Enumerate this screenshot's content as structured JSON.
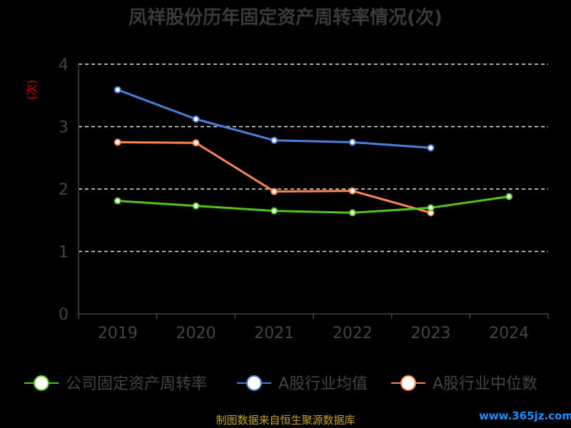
{
  "chart_data": {
    "type": "line",
    "title": "凤祥股份历年固定资产周转率情况(次)",
    "y_unit": "(次)",
    "categories": [
      "2019",
      "2020",
      "2021",
      "2022",
      "2023",
      "2024"
    ],
    "ylim": [
      0,
      4
    ],
    "yticks": [
      "0",
      "1",
      "2",
      "3",
      "4"
    ],
    "grid": true,
    "legend_position": "bottom",
    "series": [
      {
        "name": "公司固定资产周转率",
        "color": "#52c41a",
        "values": [
          1.81,
          1.73,
          1.65,
          1.62,
          1.7,
          1.88
        ]
      },
      {
        "name": "A股行业均值",
        "color": "#4a7fe0",
        "values": [
          3.59,
          3.12,
          2.78,
          2.75,
          2.66,
          null
        ]
      },
      {
        "name": "A股行业中位数",
        "color": "#ff8552",
        "values": [
          2.75,
          2.74,
          1.96,
          1.97,
          1.62,
          null
        ]
      }
    ]
  },
  "footer": {
    "source": "制图数据来自恒生聚源数据库",
    "watermark": "www.365jz.com"
  }
}
